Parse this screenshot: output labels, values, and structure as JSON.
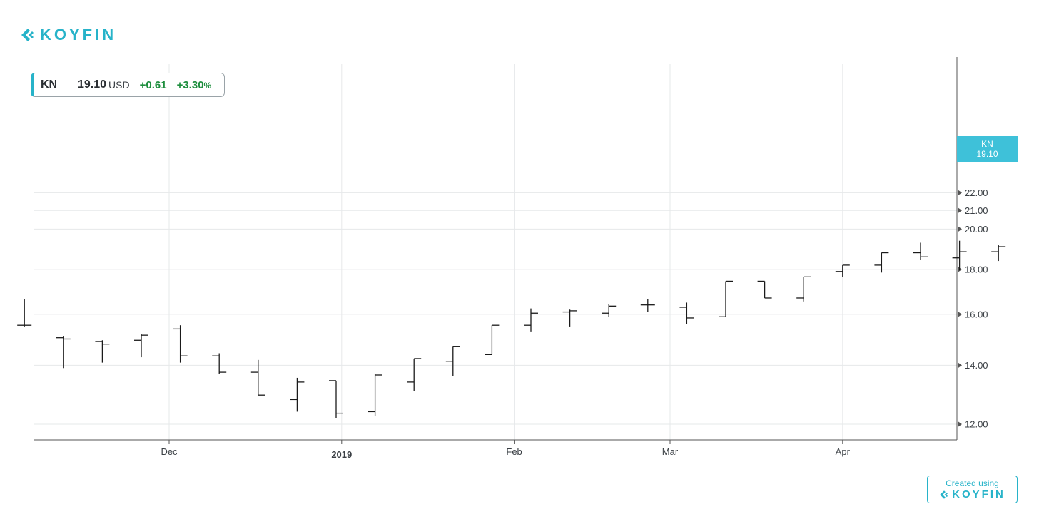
{
  "brand": {
    "name": "KOYFIN",
    "color": "#27b3c9",
    "icon": "koyfin-chevron-icon"
  },
  "quote": {
    "symbol": "KN",
    "price": "19.10",
    "currency": "USD",
    "change": "+0.61",
    "change_pct": "+3.30",
    "pct_sign": "%"
  },
  "badge": {
    "symbol": "KN",
    "price": "19.10"
  },
  "footer": {
    "created_label": "Created using",
    "brand": "KOYFIN"
  },
  "chart_data": {
    "type": "ohlc",
    "title": "",
    "xlabel": "",
    "ylabel": "",
    "y_scale": "log",
    "ylim": [
      11.8,
      22.2
    ],
    "y_ticks": [
      "22.00",
      "21.00",
      "20.00",
      "18.00",
      "16.00",
      "14.00",
      "12.00"
    ],
    "x_ticks": [
      {
        "label": "Dec",
        "date": "2018-12-01"
      },
      {
        "label": "2019",
        "date": "2019-01-01",
        "bold": true
      },
      {
        "label": "Feb",
        "date": "2019-02-01"
      },
      {
        "label": "Mar",
        "date": "2019-03-01"
      },
      {
        "label": "Apr",
        "date": "2019-04-01"
      }
    ],
    "grid": true,
    "color": "#1a1a1a",
    "series": [
      {
        "date": "2018-11-05",
        "open": 15.55,
        "high": 16.65,
        "low": 15.5,
        "close": 15.55
      },
      {
        "date": "2018-11-12",
        "open": 15.05,
        "high": 15.1,
        "low": 13.9,
        "close": 15.0
      },
      {
        "date": "2018-11-19",
        "open": 14.9,
        "high": 14.95,
        "low": 14.1,
        "close": 14.8
      },
      {
        "date": "2018-11-26",
        "open": 14.95,
        "high": 15.2,
        "low": 14.3,
        "close": 15.15
      },
      {
        "date": "2018-12-03",
        "open": 15.4,
        "high": 15.55,
        "low": 14.1,
        "close": 14.35
      },
      {
        "date": "2018-12-10",
        "open": 14.35,
        "high": 14.45,
        "low": 13.7,
        "close": 13.75
      },
      {
        "date": "2018-12-17",
        "open": 13.75,
        "high": 14.2,
        "low": 12.95,
        "close": 12.95
      },
      {
        "date": "2018-12-24",
        "open": 12.8,
        "high": 13.55,
        "low": 12.4,
        "close": 13.4
      },
      {
        "date": "2018-12-31",
        "open": 13.45,
        "high": 13.45,
        "low": 12.2,
        "close": 12.35
      },
      {
        "date": "2019-01-07",
        "open": 12.4,
        "high": 13.7,
        "low": 12.25,
        "close": 13.65
      },
      {
        "date": "2019-01-14",
        "open": 13.4,
        "high": 14.25,
        "low": 13.1,
        "close": 14.25
      },
      {
        "date": "2019-01-21",
        "open": 14.15,
        "high": 14.7,
        "low": 13.6,
        "close": 14.7
      },
      {
        "date": "2019-01-28",
        "open": 14.4,
        "high": 15.55,
        "low": 14.4,
        "close": 15.55
      },
      {
        "date": "2019-02-04",
        "open": 15.55,
        "high": 16.25,
        "low": 15.3,
        "close": 16.05
      },
      {
        "date": "2019-02-11",
        "open": 16.1,
        "high": 16.2,
        "low": 15.5,
        "close": 16.15
      },
      {
        "date": "2019-02-18",
        "open": 16.05,
        "high": 16.45,
        "low": 15.9,
        "close": 16.35
      },
      {
        "date": "2019-02-25",
        "open": 16.4,
        "high": 16.65,
        "low": 16.1,
        "close": 16.4
      },
      {
        "date": "2019-03-04",
        "open": 16.3,
        "high": 16.5,
        "low": 15.6,
        "close": 15.85
      },
      {
        "date": "2019-03-11",
        "open": 15.9,
        "high": 17.45,
        "low": 15.9,
        "close": 17.45
      },
      {
        "date": "2019-03-18",
        "open": 17.45,
        "high": 17.45,
        "low": 16.7,
        "close": 16.7
      },
      {
        "date": "2019-03-25",
        "open": 16.7,
        "high": 17.65,
        "low": 16.55,
        "close": 17.65
      },
      {
        "date": "2019-04-01",
        "open": 17.9,
        "high": 18.2,
        "low": 17.65,
        "close": 18.2
      },
      {
        "date": "2019-04-08",
        "open": 18.2,
        "high": 18.8,
        "low": 17.85,
        "close": 18.8
      },
      {
        "date": "2019-04-15",
        "open": 18.8,
        "high": 19.3,
        "low": 18.45,
        "close": 18.6
      },
      {
        "date": "2019-04-22",
        "open": 18.55,
        "high": 19.4,
        "low": 17.95,
        "close": 18.85
      },
      {
        "date": "2019-04-29",
        "open": 18.85,
        "high": 19.2,
        "low": 18.4,
        "close": 19.1
      }
    ]
  }
}
